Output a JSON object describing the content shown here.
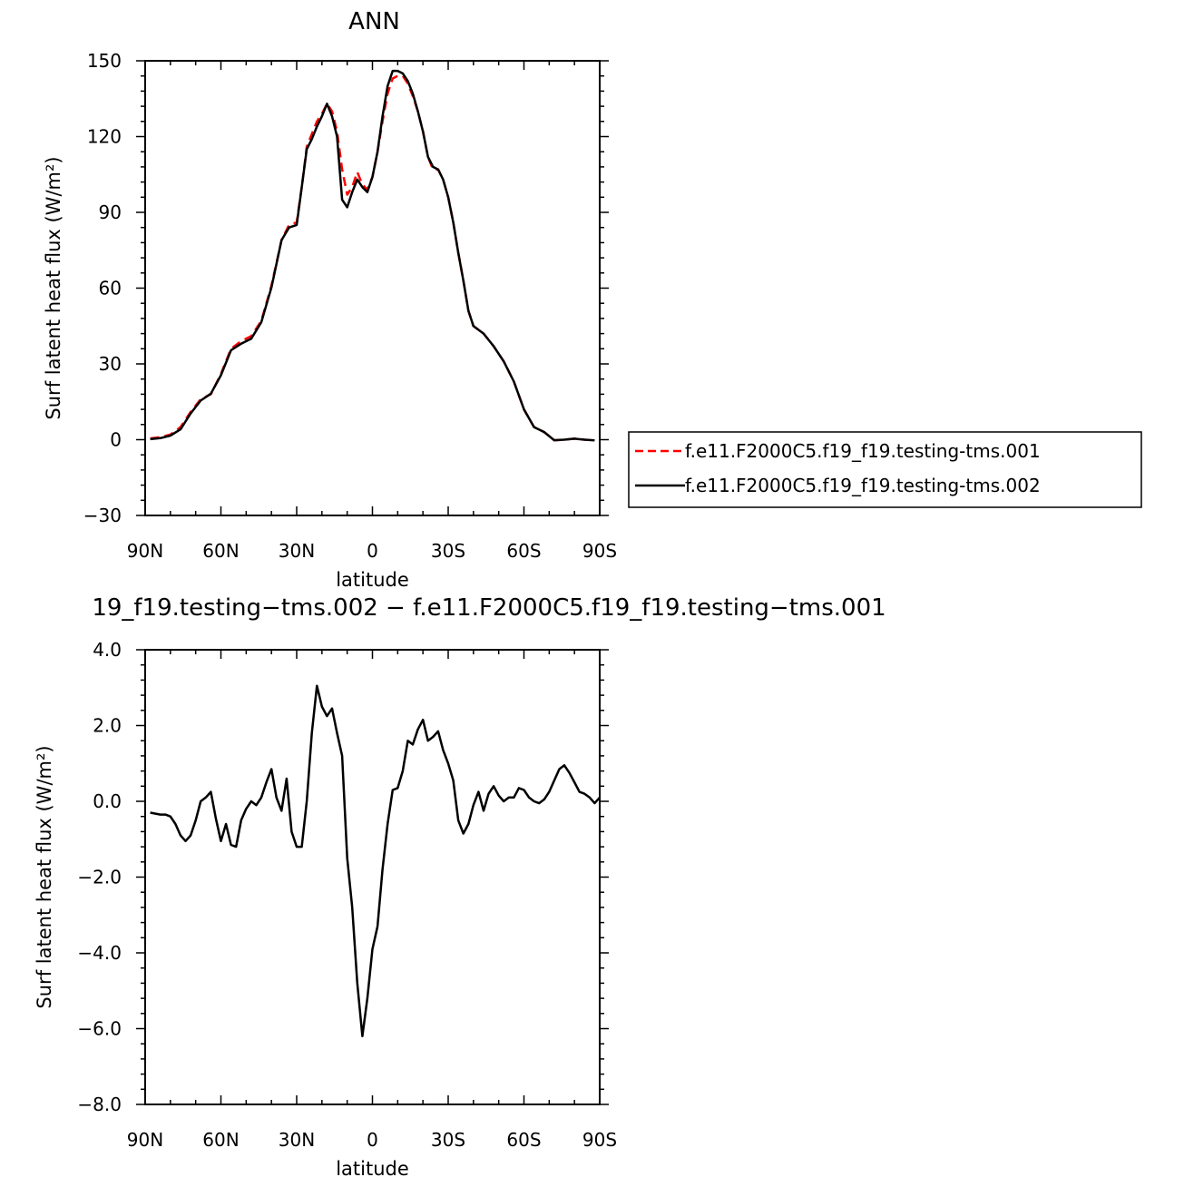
{
  "chart_data": [
    {
      "type": "line",
      "title": "ANN",
      "xlabel": "latitude",
      "ylabel": "Surf latent heat flux (W/m²)",
      "xlim": [
        90,
        -90
      ],
      "ylim": [
        -30,
        150
      ],
      "x_ticks": [
        90,
        60,
        30,
        0,
        -30,
        -60,
        -90
      ],
      "x_tick_labels": [
        "90N",
        "60N",
        "30N",
        "0",
        "30S",
        "60S",
        "90S"
      ],
      "y_ticks": [
        -30,
        0,
        30,
        60,
        90,
        120,
        150
      ],
      "y_tick_labels": [
        "−30",
        "0",
        "30",
        "60",
        "90",
        "120",
        "150"
      ],
      "legend_position": "right",
      "x": [
        88,
        84,
        80,
        76,
        72,
        68,
        64,
        60,
        56,
        52,
        48,
        44,
        40,
        36,
        33,
        30,
        28,
        26,
        24,
        22,
        20,
        18,
        16,
        14,
        12,
        10,
        8,
        6,
        4,
        2,
        0,
        -2,
        -4,
        -6,
        -8,
        -10,
        -12,
        -14,
        -16,
        -18,
        -20,
        -22,
        -24,
        -26,
        -28,
        -30,
        -32,
        -34,
        -36,
        -38,
        -40,
        -44,
        -48,
        -52,
        -56,
        -60,
        -64,
        -68,
        -72,
        -76,
        -80,
        -84,
        -88
      ],
      "series": [
        {
          "name": "f.e11.F2000C5.f19_f19.testing-tms.001",
          "color": "#ff0000",
          "dash": "dashed",
          "values": [
            0.5,
            1,
            2,
            5,
            11,
            16,
            18,
            26,
            36,
            39,
            41,
            47,
            61,
            79,
            85,
            86,
            100,
            116,
            121,
            126,
            129,
            133,
            130,
            122,
            107,
            97,
            100,
            106,
            101,
            99,
            104,
            114,
            126,
            137,
            143,
            144,
            144,
            141,
            136,
            130,
            122,
            112,
            107,
            107,
            103,
            96,
            86,
            74,
            63,
            51,
            45,
            42,
            37,
            31,
            23,
            12,
            5,
            3,
            -0.2,
            0,
            0.4,
            0,
            -0.3
          ]
        },
        {
          "name": "f.e11.F2000C5.f19_f19.testing-tms.002",
          "color": "#000000",
          "dash": "solid",
          "values": [
            0.2,
            0.6,
            1.6,
            4.1,
            10.4,
            15.5,
            18.2,
            25.5,
            35.4,
            38,
            40,
            46.5,
            60.3,
            79,
            84,
            85,
            100,
            115,
            119,
            124,
            128,
            133,
            128,
            120,
            95,
            92,
            98,
            103,
            100,
            98,
            104,
            114,
            128,
            140,
            146,
            146,
            145,
            142,
            137,
            130,
            122,
            112,
            108,
            107,
            103,
            96,
            86,
            74,
            63,
            51,
            45,
            42,
            37,
            31,
            23,
            12,
            5,
            3,
            -0.2,
            0,
            0.4,
            0,
            -0.3
          ]
        }
      ]
    },
    {
      "type": "line",
      "title": "19_f19.testing−tms.002 − f.e11.F2000C5.f19_f19.testing−tms.001",
      "xlabel": "latitude",
      "ylabel": "Surf latent heat flux (W/m²)",
      "xlim": [
        90,
        -90
      ],
      "ylim": [
        -8,
        4
      ],
      "x_ticks": [
        90,
        60,
        30,
        0,
        -30,
        -60,
        -90
      ],
      "x_tick_labels": [
        "90N",
        "60N",
        "30N",
        "0",
        "30S",
        "60S",
        "90S"
      ],
      "y_ticks": [
        -8,
        -6,
        -4,
        -2,
        0,
        2,
        4
      ],
      "y_tick_labels": [
        "−8.0",
        "−6.0",
        "−4.0",
        "−2.0",
        "0.0",
        "2.0",
        "4.0"
      ],
      "x": [
        88,
        84,
        82,
        80,
        78,
        76,
        74,
        72,
        70,
        68,
        66,
        64,
        62,
        60,
        58,
        56,
        54,
        52,
        50,
        48,
        46,
        44,
        42,
        40,
        38,
        36,
        34,
        32,
        30,
        28,
        26,
        24,
        22,
        20,
        18,
        16,
        14,
        12,
        10,
        8,
        6,
        4,
        2,
        0,
        -2,
        -4,
        -6,
        -8,
        -10,
        -12,
        -14,
        -16,
        -18,
        -20,
        -22,
        -24,
        -26,
        -28,
        -30,
        -32,
        -34,
        -36,
        -38,
        -40,
        -42,
        -44,
        -46,
        -48,
        -50,
        -52,
        -54,
        -56,
        -58,
        -60,
        -62,
        -64,
        -66,
        -68,
        -70,
        -72,
        -74,
        -76,
        -78,
        -80,
        -82,
        -84,
        -86,
        -88,
        -90
      ],
      "series": [
        {
          "name": "",
          "color": "#000000",
          "dash": "solid",
          "values": [
            -0.3,
            -0.35,
            -0.35,
            -0.4,
            -0.6,
            -0.9,
            -1.05,
            -0.9,
            -0.5,
            0,
            0.1,
            0.25,
            -0.45,
            -1.05,
            -0.6,
            -1.15,
            -1.2,
            -0.5,
            -0.2,
            0,
            -0.1,
            0.1,
            0.5,
            0.85,
            0.1,
            -0.25,
            0.6,
            -0.8,
            -1.2,
            -1.2,
            0,
            1.8,
            3.05,
            2.5,
            2.25,
            2.45,
            1.8,
            1.2,
            -1.5,
            -2.8,
            -4.8,
            -6.2,
            -5.2,
            -3.9,
            -3.3,
            -1.8,
            -0.6,
            0.3,
            0.35,
            0.8,
            1.6,
            1.5,
            1.9,
            2.15,
            1.6,
            1.7,
            1.85,
            1.35,
            1.0,
            0.55,
            -0.5,
            -0.85,
            -0.6,
            -0.1,
            0.25,
            -0.25,
            0.2,
            0.4,
            0.15,
            0.0,
            0.1,
            0.1,
            0.35,
            0.3,
            0.1,
            0.0,
            -0.05,
            0.05,
            0.25,
            0.55,
            0.85,
            0.95,
            0.75,
            0.5,
            0.25,
            0.2,
            0.1,
            -0.05,
            0.1
          ]
        }
      ]
    }
  ]
}
